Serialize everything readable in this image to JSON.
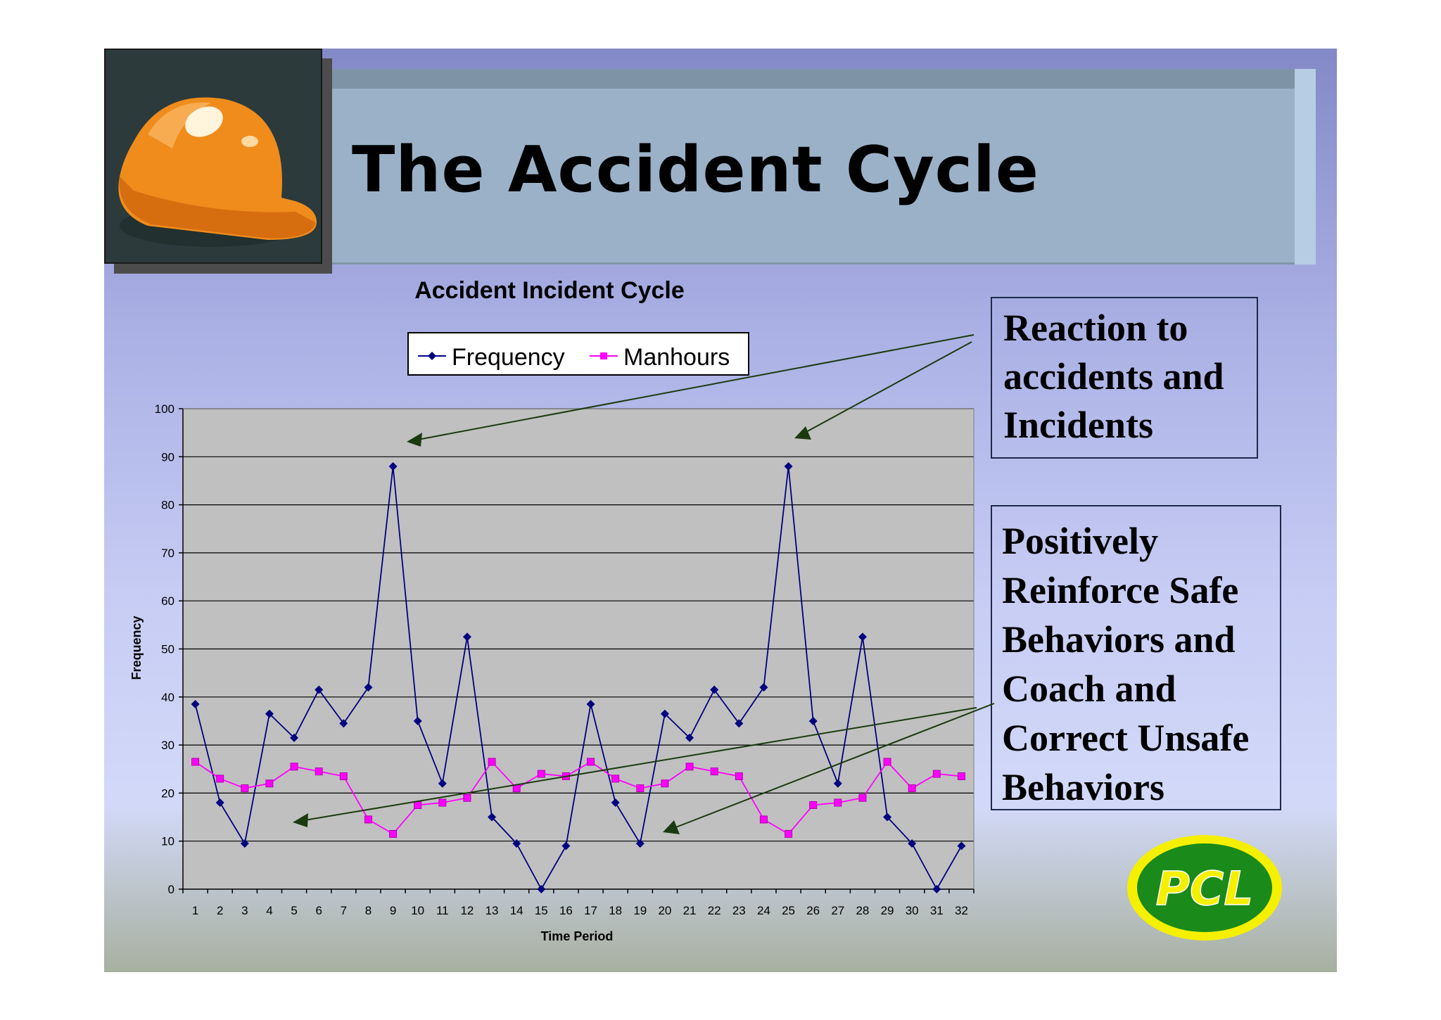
{
  "slide": {
    "title": "The Accident Cycle",
    "callouts": [
      "Reaction to accidents and Incidents",
      "Positively Reinforce Safe Behaviors and Coach and Correct Unsafe Behaviors"
    ],
    "logo_text": "PCL"
  },
  "colors": {
    "frequency": "#000080",
    "manhours": "#ff00ff",
    "plot_bg": "#c0c0c0",
    "arrow": "#1c3a10",
    "logo_green": "#1a8a1a",
    "logo_yellow": "#f5f000"
  },
  "icons": [
    "hard-hat-photo",
    "pcl-logo"
  ],
  "chart_data": {
    "type": "line",
    "title": "Accident Incident Cycle",
    "xlabel": "Time Period",
    "ylabel": "Frequency",
    "ylim": [
      0,
      100
    ],
    "yticks": [
      0,
      10,
      20,
      30,
      40,
      50,
      60,
      70,
      80,
      90,
      100
    ],
    "grid": true,
    "legend": "top",
    "categories": [
      "1",
      "2",
      "3",
      "4",
      "5",
      "6",
      "7",
      "8",
      "9",
      "10",
      "11",
      "12",
      "13",
      "14",
      "15",
      "16",
      "17",
      "18",
      "19",
      "20",
      "21",
      "22",
      "23",
      "24",
      "25",
      "26",
      "27",
      "28",
      "29",
      "30",
      "31",
      "32"
    ],
    "series": [
      {
        "name": "Frequency",
        "marker": "diamond",
        "values": [
          38.5,
          18,
          9.5,
          36.5,
          31.5,
          41.5,
          34.5,
          42,
          88,
          35,
          22,
          52.5,
          15,
          9.5,
          0,
          9,
          38.5,
          18,
          9.5,
          36.5,
          31.5,
          41.5,
          34.5,
          42,
          88,
          35,
          22,
          52.5,
          15,
          9.5,
          0,
          9
        ]
      },
      {
        "name": "Manhours",
        "marker": "square",
        "values": [
          26.5,
          23,
          21,
          22,
          25.5,
          24.5,
          23.5,
          14.5,
          11.5,
          17.5,
          18,
          19,
          26.5,
          21,
          24,
          23.5,
          26.5,
          23,
          21,
          22,
          25.5,
          24.5,
          23.5,
          14.5,
          11.5,
          17.5,
          18,
          19,
          26.5,
          21,
          24,
          23.5
        ]
      }
    ]
  }
}
